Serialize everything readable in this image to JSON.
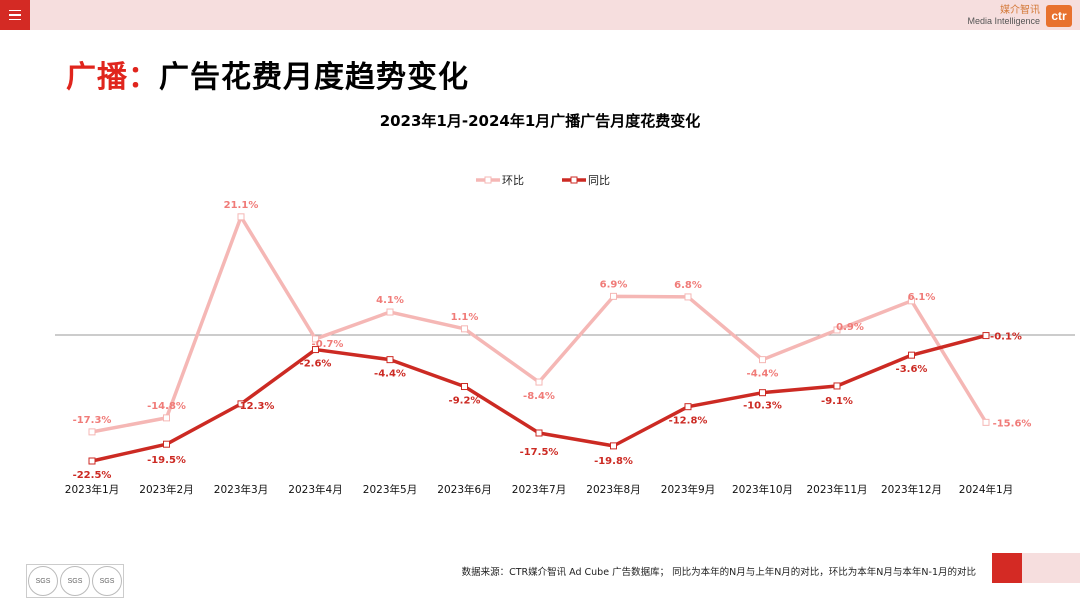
{
  "header": {
    "logo_cn": "媒介智讯",
    "logo_en": "Media Intelligence",
    "logo_mark": "ctr"
  },
  "page": {
    "title_prefix": "广播：",
    "title_main": "广告花费月度趋势变化"
  },
  "footer": {
    "source_note": "数据来源：CTR媒介智讯 Ad Cube 广告数据库； 同比为本年的N月与上年N月的对比，环比为本年N月与本年N-1月的对比",
    "badge_label": "SGS"
  },
  "colors": {
    "accent": "#d42a24",
    "mom": "#f5b7b5",
    "yoy": "#cc2a23"
  },
  "chart_data": {
    "type": "line",
    "title": "2023年1月-2024年1月广播广告月度花费变化",
    "legend_position": "top-center",
    "categories": [
      "2023年1月",
      "2023年2月",
      "2023年3月",
      "2023年4月",
      "2023年5月",
      "2023年6月",
      "2023年7月",
      "2023年8月",
      "2023年9月",
      "2023年10月",
      "2023年11月",
      "2023年12月",
      "2024年1月"
    ],
    "series": [
      {
        "name": "环比",
        "values": [
          -17.3,
          -14.8,
          21.1,
          -0.7,
          4.1,
          1.1,
          -8.4,
          6.9,
          6.8,
          -4.4,
          0.9,
          6.1,
          -15.6
        ],
        "labels": [
          "-17.3%",
          "-14.8%",
          "21.1%",
          "-0.7%",
          "4.1%",
          "1.1%",
          "-8.4%",
          "6.9%",
          "6.8%",
          "-4.4%",
          "0.9%",
          "6.1%",
          "-15.6%"
        ]
      },
      {
        "name": "同比",
        "values": [
          -22.5,
          -19.5,
          -12.3,
          -2.6,
          -4.4,
          -9.2,
          -17.5,
          -19.8,
          -12.8,
          -10.3,
          -9.1,
          -3.6,
          -0.1
        ],
        "labels": [
          "-22.5%",
          "-19.5%",
          "-12.3%",
          "-2.6%",
          "-4.4%",
          "-9.2%",
          "-17.5%",
          "-19.8%",
          "-12.8%",
          "-10.3%",
          "-9.1%",
          "-3.6%",
          "-0.1%"
        ]
      }
    ],
    "ylim": [
      -25,
      25
    ],
    "grid": false
  }
}
